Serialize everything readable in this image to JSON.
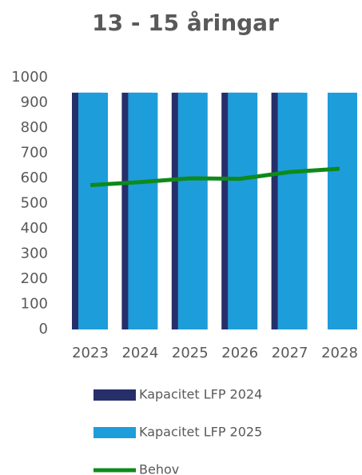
{
  "chart_data": {
    "type": "bar",
    "title": "13 - 15 åringar",
    "categories": [
      "2023",
      "2024",
      "2025",
      "2026",
      "2027",
      "2028"
    ],
    "series": [
      {
        "name": "Kapacitet LFP 2024",
        "color": "#262f6a",
        "values": [
          940,
          940,
          940,
          940,
          940,
          null
        ]
      },
      {
        "name": "Kapacitet LFP 2025",
        "color": "#1e9ddb",
        "values": [
          940,
          940,
          940,
          940,
          940,
          940
        ]
      },
      {
        "name": "Behov",
        "type": "line",
        "color": "#0d8a1a",
        "values": [
          573,
          585,
          600,
          598,
          625,
          638
        ]
      }
    ],
    "ylim": [
      0,
      1000
    ],
    "yticks": [
      0,
      100,
      200,
      300,
      400,
      500,
      600,
      700,
      800,
      900,
      1000
    ],
    "grid": false
  }
}
